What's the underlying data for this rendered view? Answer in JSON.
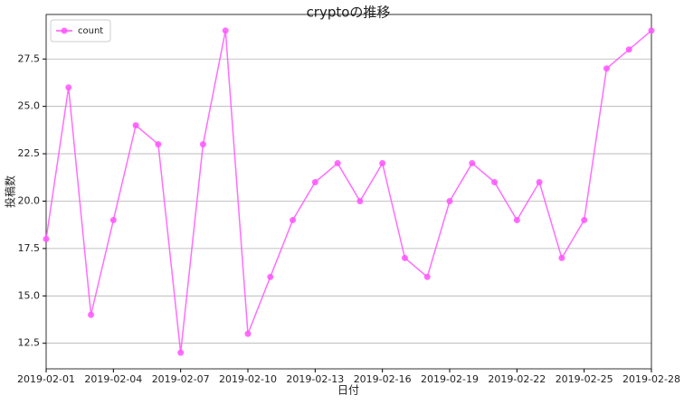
{
  "chart_data": {
    "type": "line",
    "title": "cryptoの推移",
    "x_label": "日付",
    "y_label": "投稿数",
    "x": [
      "2019-02-01",
      "2019-02-02",
      "2019-02-03",
      "2019-02-04",
      "2019-02-05",
      "2019-02-06",
      "2019-02-07",
      "2019-02-08",
      "2019-02-09",
      "2019-02-10",
      "2019-02-11",
      "2019-02-12",
      "2019-02-13",
      "2019-02-14",
      "2019-02-15",
      "2019-02-16",
      "2019-02-17",
      "2019-02-18",
      "2019-02-19",
      "2019-02-20",
      "2019-02-21",
      "2019-02-22",
      "2019-02-23",
      "2019-02-24",
      "2019-02-25",
      "2019-02-26",
      "2019-02-27",
      "2019-02-28"
    ],
    "series": [
      {
        "name": "count",
        "color": "#ff55ff",
        "values": [
          18,
          26,
          14,
          19,
          24,
          23,
          12,
          23,
          29,
          13,
          16,
          19,
          21,
          22,
          20,
          22,
          17,
          16,
          20,
          22,
          21,
          19,
          21,
          17,
          19,
          27,
          28,
          29
        ]
      }
    ],
    "xlim": [
      "2019-02-01",
      "2019-02-28"
    ],
    "xticks": [
      "2019-02-01",
      "2019-02-04",
      "2019-02-07",
      "2019-02-10",
      "2019-02-13",
      "2019-02-16",
      "2019-02-19",
      "2019-02-22",
      "2019-02-25",
      "2019-02-28"
    ],
    "ylim": [
      11.15,
      29.85
    ],
    "yticks": [
      12.5,
      {
        "value": 15,
        "label": "15.0"
      },
      17.5,
      {
        "value": 20,
        "label": "20.0"
      },
      22.5,
      {
        "value": 25,
        "label": "25.0"
      },
      27.5
    ],
    "grid": "y",
    "legend": "upper left"
  }
}
